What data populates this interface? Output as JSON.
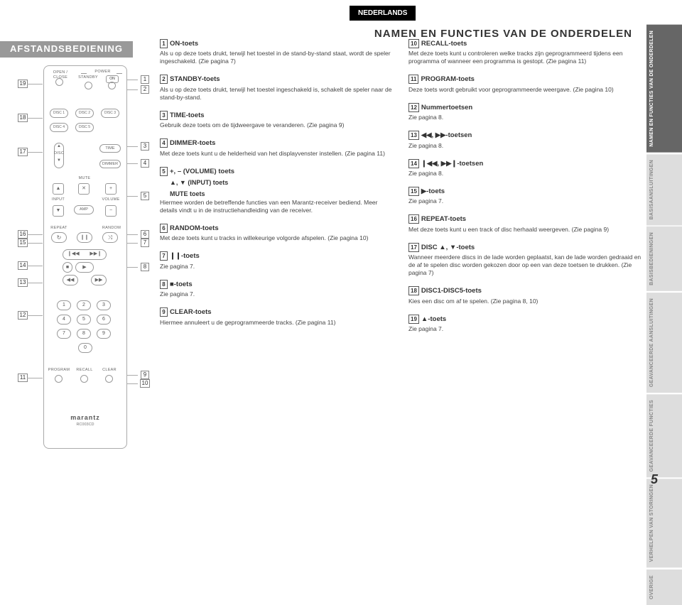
{
  "language": "NEDERLANDS",
  "pageTitle": "NAMEN EN FUNCTIES VAN DE ONDERDELEN",
  "sectionHeader": "AFSTANDSBEDIENING",
  "pageNumber": "5",
  "brand": "marantz",
  "model": "RC003CD",
  "remote": {
    "openClose": "OPEN /\nCLOSE",
    "power": "POWER",
    "standby": "STANDBY",
    "on": "ON",
    "discs": [
      "DISC 1",
      "DISC 2",
      "DISC 3",
      "DISC 4",
      "DISC 5"
    ],
    "disc": "DISC",
    "time": "TIME",
    "dimmer": "DIMMER",
    "mute": "MUTE",
    "input": "INPUT",
    "volume": "VOLUME",
    "amp": "AMP",
    "repeat": "REPEAT",
    "random": "RANDOM",
    "program": "PROGRAM",
    "recall": "RECALL",
    "clear": "CLEAR"
  },
  "sideTabs": [
    {
      "t": "NAMEN EN FUNCTIES VAN DE ONDERDELEN",
      "active": true
    },
    {
      "t": "BASISAANSLUITINGEN",
      "active": false
    },
    {
      "t": "BASISBEDIENINGEN",
      "active": false
    },
    {
      "t": "GEAVANCEERDE AANSLUITINGEN",
      "active": false
    },
    {
      "t": "GEAVANCEERDE FUNCTIES",
      "active": false
    },
    {
      "t": "VERHELPEN VAN STORINGEN",
      "active": false
    },
    {
      "t": "OVERIGE",
      "active": false
    }
  ],
  "calloutsLeft": [
    "19",
    "18",
    "17",
    "16",
    "15",
    "14",
    "13",
    "12",
    "11"
  ],
  "calloutsRight": [
    "1",
    "2",
    "3",
    "4",
    "5",
    "6",
    "7",
    "8",
    "9",
    "10"
  ],
  "col1": [
    {
      "n": "1",
      "t": "ON-toets",
      "b": "Als u op deze toets drukt, terwijl het toestel in de stand-by-stand staat, wordt de speler ingeschakeld. (Zie pagina 7)"
    },
    {
      "n": "2",
      "t": "STANDBY-toets",
      "b": "Als u op deze toets drukt, terwijl het toestel ingeschakeld is, schakelt de speler naar de stand-by-stand."
    },
    {
      "n": "3",
      "t": "TIME-toets",
      "b": "Gebruik deze toets om de tijdweergave te veranderen. (Zie pagina 9)"
    },
    {
      "n": "4",
      "t": "DIMMER-toets",
      "b": "Met deze toets kunt u de helderheid van het displayvenster instellen. (Zie pagina 11)"
    },
    {
      "n": "5",
      "t": "+, – (VOLUME) toets",
      "sub": [
        "▲, ▼ (INPUT) toets",
        "MUTE toets"
      ],
      "b": "Hiermee worden de betreffende functies van een Marantz-receiver bediend. Meer details vindt u in de instructiehandleiding van de receiver."
    },
    {
      "n": "6",
      "t": "RANDOM-toets",
      "b": "Met deze toets kunt u tracks in willekeurige volgorde afspelen. (Zie pagina 10)"
    },
    {
      "n": "7",
      "t": "❙❙-toets",
      "b": "Zie pagina 7."
    },
    {
      "n": "8",
      "t": "■-toets",
      "b": "Zie pagina 7."
    },
    {
      "n": "9",
      "t": "CLEAR-toets",
      "b": "Hiermee annuleert u de geprogrammeerde tracks. (Zie pagina 11)"
    }
  ],
  "col2": [
    {
      "n": "10",
      "t": "RECALL-toets",
      "b": "Met deze toets kunt u controleren welke tracks zijn geprogrammeerd tijdens een programma of wanneer een programma is gestopt. (Zie pagina 11)"
    },
    {
      "n": "11",
      "t": "PROGRAM-toets",
      "b": "Deze toets wordt gebruikt voor geprogrammeerde weergave. (Zie pagina 10)"
    },
    {
      "n": "12",
      "t": "Nummertoetsen",
      "b": "Zie pagina 8."
    },
    {
      "n": "13",
      "t": "◀◀, ▶▶-toetsen",
      "b": "Zie pagina 8."
    },
    {
      "n": "14",
      "t": "❙◀◀, ▶▶❙-toetsen",
      "b": "Zie pagina 8."
    },
    {
      "n": "15",
      "t": "▶-toets",
      "b": "Zie pagina 7."
    },
    {
      "n": "16",
      "t": "REPEAT-toets",
      "b": "Met deze toets kunt u een track of disc herhaald weergeven. (Zie pagina 9)"
    },
    {
      "n": "17",
      "t": "DISC ▲, ▼-toets",
      "b": "Wanneer meerdere discs in de lade worden geplaatst, kan de lade worden gedraaid en de af te spelen disc worden gekozen door op een van deze toetsen te drukken. (Zie pagina 7)"
    },
    {
      "n": "18",
      "t": "DISC1-DISC5-toets",
      "b": "Kies een disc om af te spelen. (Zie pagina 8, 10)"
    },
    {
      "n": "19",
      "t": "▲-toets",
      "b": "Zie pagina 7."
    }
  ]
}
